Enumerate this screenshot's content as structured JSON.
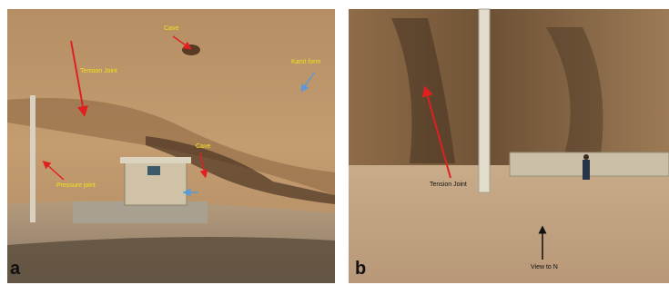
{
  "panels": [
    {
      "label": "a",
      "annotations": [
        "Cave",
        "Tension Joint",
        "Karst form",
        "Cave",
        "Pressure joint"
      ]
    },
    {
      "label": "b",
      "annotations": [
        "Tension Joint",
        "View to N"
      ]
    }
  ]
}
